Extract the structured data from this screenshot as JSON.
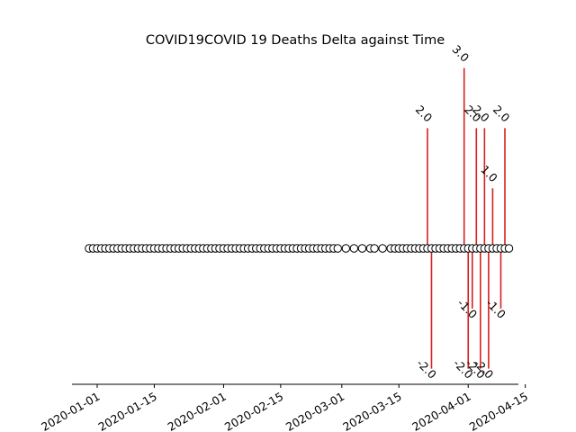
{
  "chart_data": {
    "type": "scatter",
    "title": "COVID19COVID 19 Deaths Delta against Time",
    "xlabel": "",
    "ylabel": "",
    "x_ticks": [
      "2020-01-01",
      "2020-01-15",
      "2020-02-01",
      "2020-02-15",
      "2020-03-01",
      "2020-03-15",
      "2020-04-01",
      "2020-04-15"
    ],
    "baseline_dates": [
      "2019-12-30",
      "2019-12-31",
      "2020-01-01",
      "2020-01-02",
      "2020-01-03",
      "2020-01-04",
      "2020-01-05",
      "2020-01-06",
      "2020-01-07",
      "2020-01-08",
      "2020-01-09",
      "2020-01-10",
      "2020-01-11",
      "2020-01-12",
      "2020-01-13",
      "2020-01-14",
      "2020-01-15",
      "2020-01-16",
      "2020-01-17",
      "2020-01-18",
      "2020-01-19",
      "2020-01-20",
      "2020-01-21",
      "2020-01-22",
      "2020-01-23",
      "2020-01-24",
      "2020-01-25",
      "2020-01-26",
      "2020-01-27",
      "2020-01-28",
      "2020-01-29",
      "2020-01-30",
      "2020-01-31",
      "2020-02-01",
      "2020-02-02",
      "2020-02-03",
      "2020-02-04",
      "2020-02-05",
      "2020-02-06",
      "2020-02-07",
      "2020-02-08",
      "2020-02-09",
      "2020-02-10",
      "2020-02-11",
      "2020-02-12",
      "2020-02-13",
      "2020-02-14",
      "2020-02-15",
      "2020-02-16",
      "2020-02-17",
      "2020-02-18",
      "2020-02-19",
      "2020-02-20",
      "2020-02-21",
      "2020-02-22",
      "2020-02-23",
      "2020-02-24",
      "2020-02-25",
      "2020-02-26",
      "2020-02-27",
      "2020-02-28",
      "2020-02-29",
      "2020-03-02",
      "2020-03-04",
      "2020-03-06",
      "2020-03-08",
      "2020-03-09",
      "2020-03-11",
      "2020-03-13",
      "2020-03-14",
      "2020-03-15",
      "2020-03-16",
      "2020-03-17",
      "2020-03-18",
      "2020-03-19",
      "2020-03-20",
      "2020-03-21",
      "2020-03-22",
      "2020-03-23",
      "2020-03-24",
      "2020-03-25",
      "2020-03-26",
      "2020-03-27",
      "2020-03-28",
      "2020-03-29",
      "2020-03-30",
      "2020-03-31",
      "2020-04-01",
      "2020-04-02",
      "2020-04-03",
      "2020-04-04",
      "2020-04-05",
      "2020-04-06",
      "2020-04-07",
      "2020-04-08",
      "2020-04-09",
      "2020-04-10",
      "2020-04-11"
    ],
    "ylim": [
      -3.5,
      3.5
    ],
    "grid": false,
    "stems": [
      {
        "x": "2020-03-22",
        "y": 2.0,
        "label": "2.0"
      },
      {
        "x": "2020-03-23",
        "y": -2.0,
        "label": "-2.0"
      },
      {
        "x": "2020-03-31",
        "y": 3.0,
        "label": "3.0"
      },
      {
        "x": "2020-04-01",
        "y": -2.0,
        "label": "-2.0"
      },
      {
        "x": "2020-04-02",
        "y": -1.0,
        "label": "-1.0"
      },
      {
        "x": "2020-04-03",
        "y": 2.0,
        "label": "2.0"
      },
      {
        "x": "2020-04-04",
        "y": -2.0,
        "label": "-2.0"
      },
      {
        "x": "2020-04-05",
        "y": 2.0,
        "label": "2.0"
      },
      {
        "x": "2020-04-06",
        "y": -2.0,
        "label": "-2.0"
      },
      {
        "x": "2020-04-07",
        "y": 1.0,
        "label": "1.0"
      },
      {
        "x": "2020-04-09",
        "y": -1.0,
        "label": "-1.0"
      },
      {
        "x": "2020-04-10",
        "y": 2.0,
        "label": "2.0"
      }
    ],
    "colors": {
      "stem": "#d62020",
      "marker_edge": "#000000",
      "marker_face": "#ffffff"
    }
  }
}
